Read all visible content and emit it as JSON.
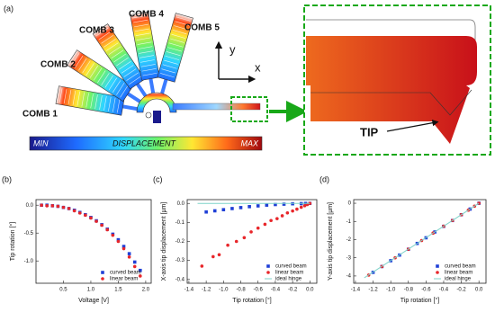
{
  "panel_a": {
    "label": "(a)",
    "combs": [
      "COMB 1",
      "COMB 2",
      "COMB 3",
      "COMB 4",
      "COMB 5"
    ],
    "axis_y": "y",
    "axis_x": "x",
    "colorbar": {
      "min": "MIN",
      "title": "DISPLACEMENT",
      "max": "MAX"
    },
    "tip": "TIP"
  },
  "chart_data": [
    {
      "type": "scatter",
      "panel": "(b)",
      "x_label": "Voltage [V]",
      "y_label": "Tip rotation [°]",
      "xlim": [
        0,
        2.1
      ],
      "ylim": [
        -1.4,
        0.1
      ],
      "xticks": [
        0.5,
        {
          "value": 1.0,
          "label": "1.0"
        },
        1.5,
        {
          "value": 2.0,
          "label": "2.0"
        }
      ],
      "yticks": [
        {
          "value": 0.0,
          "label": "0.0"
        },
        -0.5,
        {
          "value": -1.0,
          "label": "-1.0"
        }
      ],
      "legend": "lower right",
      "series": [
        {
          "name": "curved beam",
          "color": "#1f3fd6",
          "marker": "square",
          "x": [
            0.1,
            0.2,
            0.3,
            0.4,
            0.5,
            0.6,
            0.7,
            0.8,
            0.9,
            1.0,
            1.1,
            1.2,
            1.3,
            1.4,
            1.5,
            1.6,
            1.7,
            1.8,
            1.9
          ],
          "values": [
            0,
            0,
            -0.01,
            -0.02,
            -0.04,
            -0.06,
            -0.09,
            -0.13,
            -0.17,
            -0.22,
            -0.28,
            -0.35,
            -0.43,
            -0.52,
            -0.62,
            -0.74,
            -0.87,
            -1.02,
            -1.17
          ]
        },
        {
          "name": "linear beam",
          "color": "#e8262a",
          "marker": "circle",
          "x": [
            0.1,
            0.2,
            0.3,
            0.4,
            0.5,
            0.6,
            0.7,
            0.8,
            0.9,
            1.0,
            1.1,
            1.2,
            1.3,
            1.4,
            1.5,
            1.6,
            1.7,
            1.8,
            1.9
          ],
          "values": [
            0,
            -0.01,
            -0.01,
            -0.02,
            -0.04,
            -0.06,
            -0.1,
            -0.14,
            -0.18,
            -0.23,
            -0.29,
            -0.36,
            -0.44,
            -0.54,
            -0.65,
            -0.78,
            -0.93,
            -1.1,
            -1.27
          ]
        }
      ]
    },
    {
      "type": "scatter",
      "panel": "(c)",
      "x_label": "Tip rotation [°]",
      "y_label": "X-axis tip displacement [µm]",
      "xlim": [
        -1.42,
        0.08
      ],
      "ylim": [
        -0.42,
        0.02
      ],
      "xticks": [
        -1.4,
        -1.2,
        {
          "value": -1.0,
          "label": "-1.0"
        },
        -0.8,
        -0.6,
        -0.4,
        -0.2,
        {
          "value": 0.0,
          "label": "0.0"
        }
      ],
      "yticks": [
        {
          "value": 0.0,
          "label": "0.0"
        },
        -0.1,
        -0.2,
        -0.3,
        -0.4
      ],
      "legend": "lower right",
      "series": [
        {
          "name": "curved beam",
          "color": "#1f3fd6",
          "marker": "square",
          "x": [
            -1.2,
            -1.1,
            -1.0,
            -0.9,
            -0.8,
            -0.7,
            -0.6,
            -0.5,
            -0.4,
            -0.3,
            -0.2,
            -0.1,
            -0.05,
            0
          ],
          "values": [
            -0.045,
            -0.039,
            -0.033,
            -0.027,
            -0.022,
            -0.017,
            -0.013,
            -0.009,
            -0.006,
            -0.004,
            -0.002,
            -0.001,
            0,
            0
          ]
        },
        {
          "name": "linear beam",
          "color": "#e8262a",
          "marker": "circle",
          "x": [
            -1.25,
            -1.12,
            -1.05,
            -0.95,
            -0.85,
            -0.76,
            -0.68,
            -0.6,
            -0.52,
            -0.45,
            -0.38,
            -0.32,
            -0.26,
            -0.2,
            -0.15,
            -0.1,
            -0.06,
            -0.03,
            0
          ],
          "values": [
            -0.33,
            -0.28,
            -0.27,
            -0.22,
            -0.2,
            -0.18,
            -0.15,
            -0.13,
            -0.11,
            -0.09,
            -0.08,
            -0.065,
            -0.05,
            -0.04,
            -0.03,
            -0.02,
            -0.012,
            -0.006,
            0
          ]
        },
        {
          "name": "ideal hinge",
          "color": "#7fd3c9",
          "marker": "line",
          "x": [
            -1.3,
            0
          ],
          "values": [
            0,
            0
          ]
        }
      ]
    },
    {
      "type": "scatter",
      "panel": "(d)",
      "x_label": "Tip rotation [°]",
      "y_label": "Y-axis tip displacement [µm]",
      "xlim": [
        -1.42,
        0.08
      ],
      "ylim": [
        -4.4,
        0.2
      ],
      "xticks": [
        -1.4,
        -1.2,
        {
          "value": -1.0,
          "label": "-1.0"
        },
        -0.8,
        -0.6,
        -0.4,
        -0.2,
        {
          "value": 0.0,
          "label": "0.0"
        }
      ],
      "yticks": [
        0,
        -1,
        -2,
        -3,
        -4
      ],
      "legend": "lower right",
      "series": [
        {
          "name": "curved beam",
          "color": "#1f3fd6",
          "marker": "square",
          "x": [
            -1.2,
            -1.1,
            -1.0,
            -0.9,
            -0.8,
            -0.7,
            -0.6,
            -0.5,
            -0.4,
            -0.3,
            -0.2,
            -0.1,
            0
          ],
          "values": [
            -3.8,
            -3.48,
            -3.16,
            -2.85,
            -2.53,
            -2.21,
            -1.9,
            -1.58,
            -1.27,
            -0.95,
            -0.63,
            -0.32,
            0
          ]
        },
        {
          "name": "linear beam",
          "color": "#e8262a",
          "marker": "circle",
          "x": [
            -1.25,
            -1.1,
            -0.95,
            -0.8,
            -0.65,
            -0.52,
            -0.4,
            -0.3,
            -0.2,
            -0.12,
            -0.05,
            0
          ],
          "values": [
            -3.95,
            -3.48,
            -3.0,
            -2.53,
            -2.05,
            -1.64,
            -1.26,
            -0.95,
            -0.63,
            -0.38,
            -0.16,
            0
          ]
        },
        {
          "name": "ideal hinge",
          "color": "#7fd3c9",
          "marker": "line",
          "x": [
            -1.3,
            0
          ],
          "values": [
            -4.1,
            0
          ]
        }
      ]
    }
  ]
}
